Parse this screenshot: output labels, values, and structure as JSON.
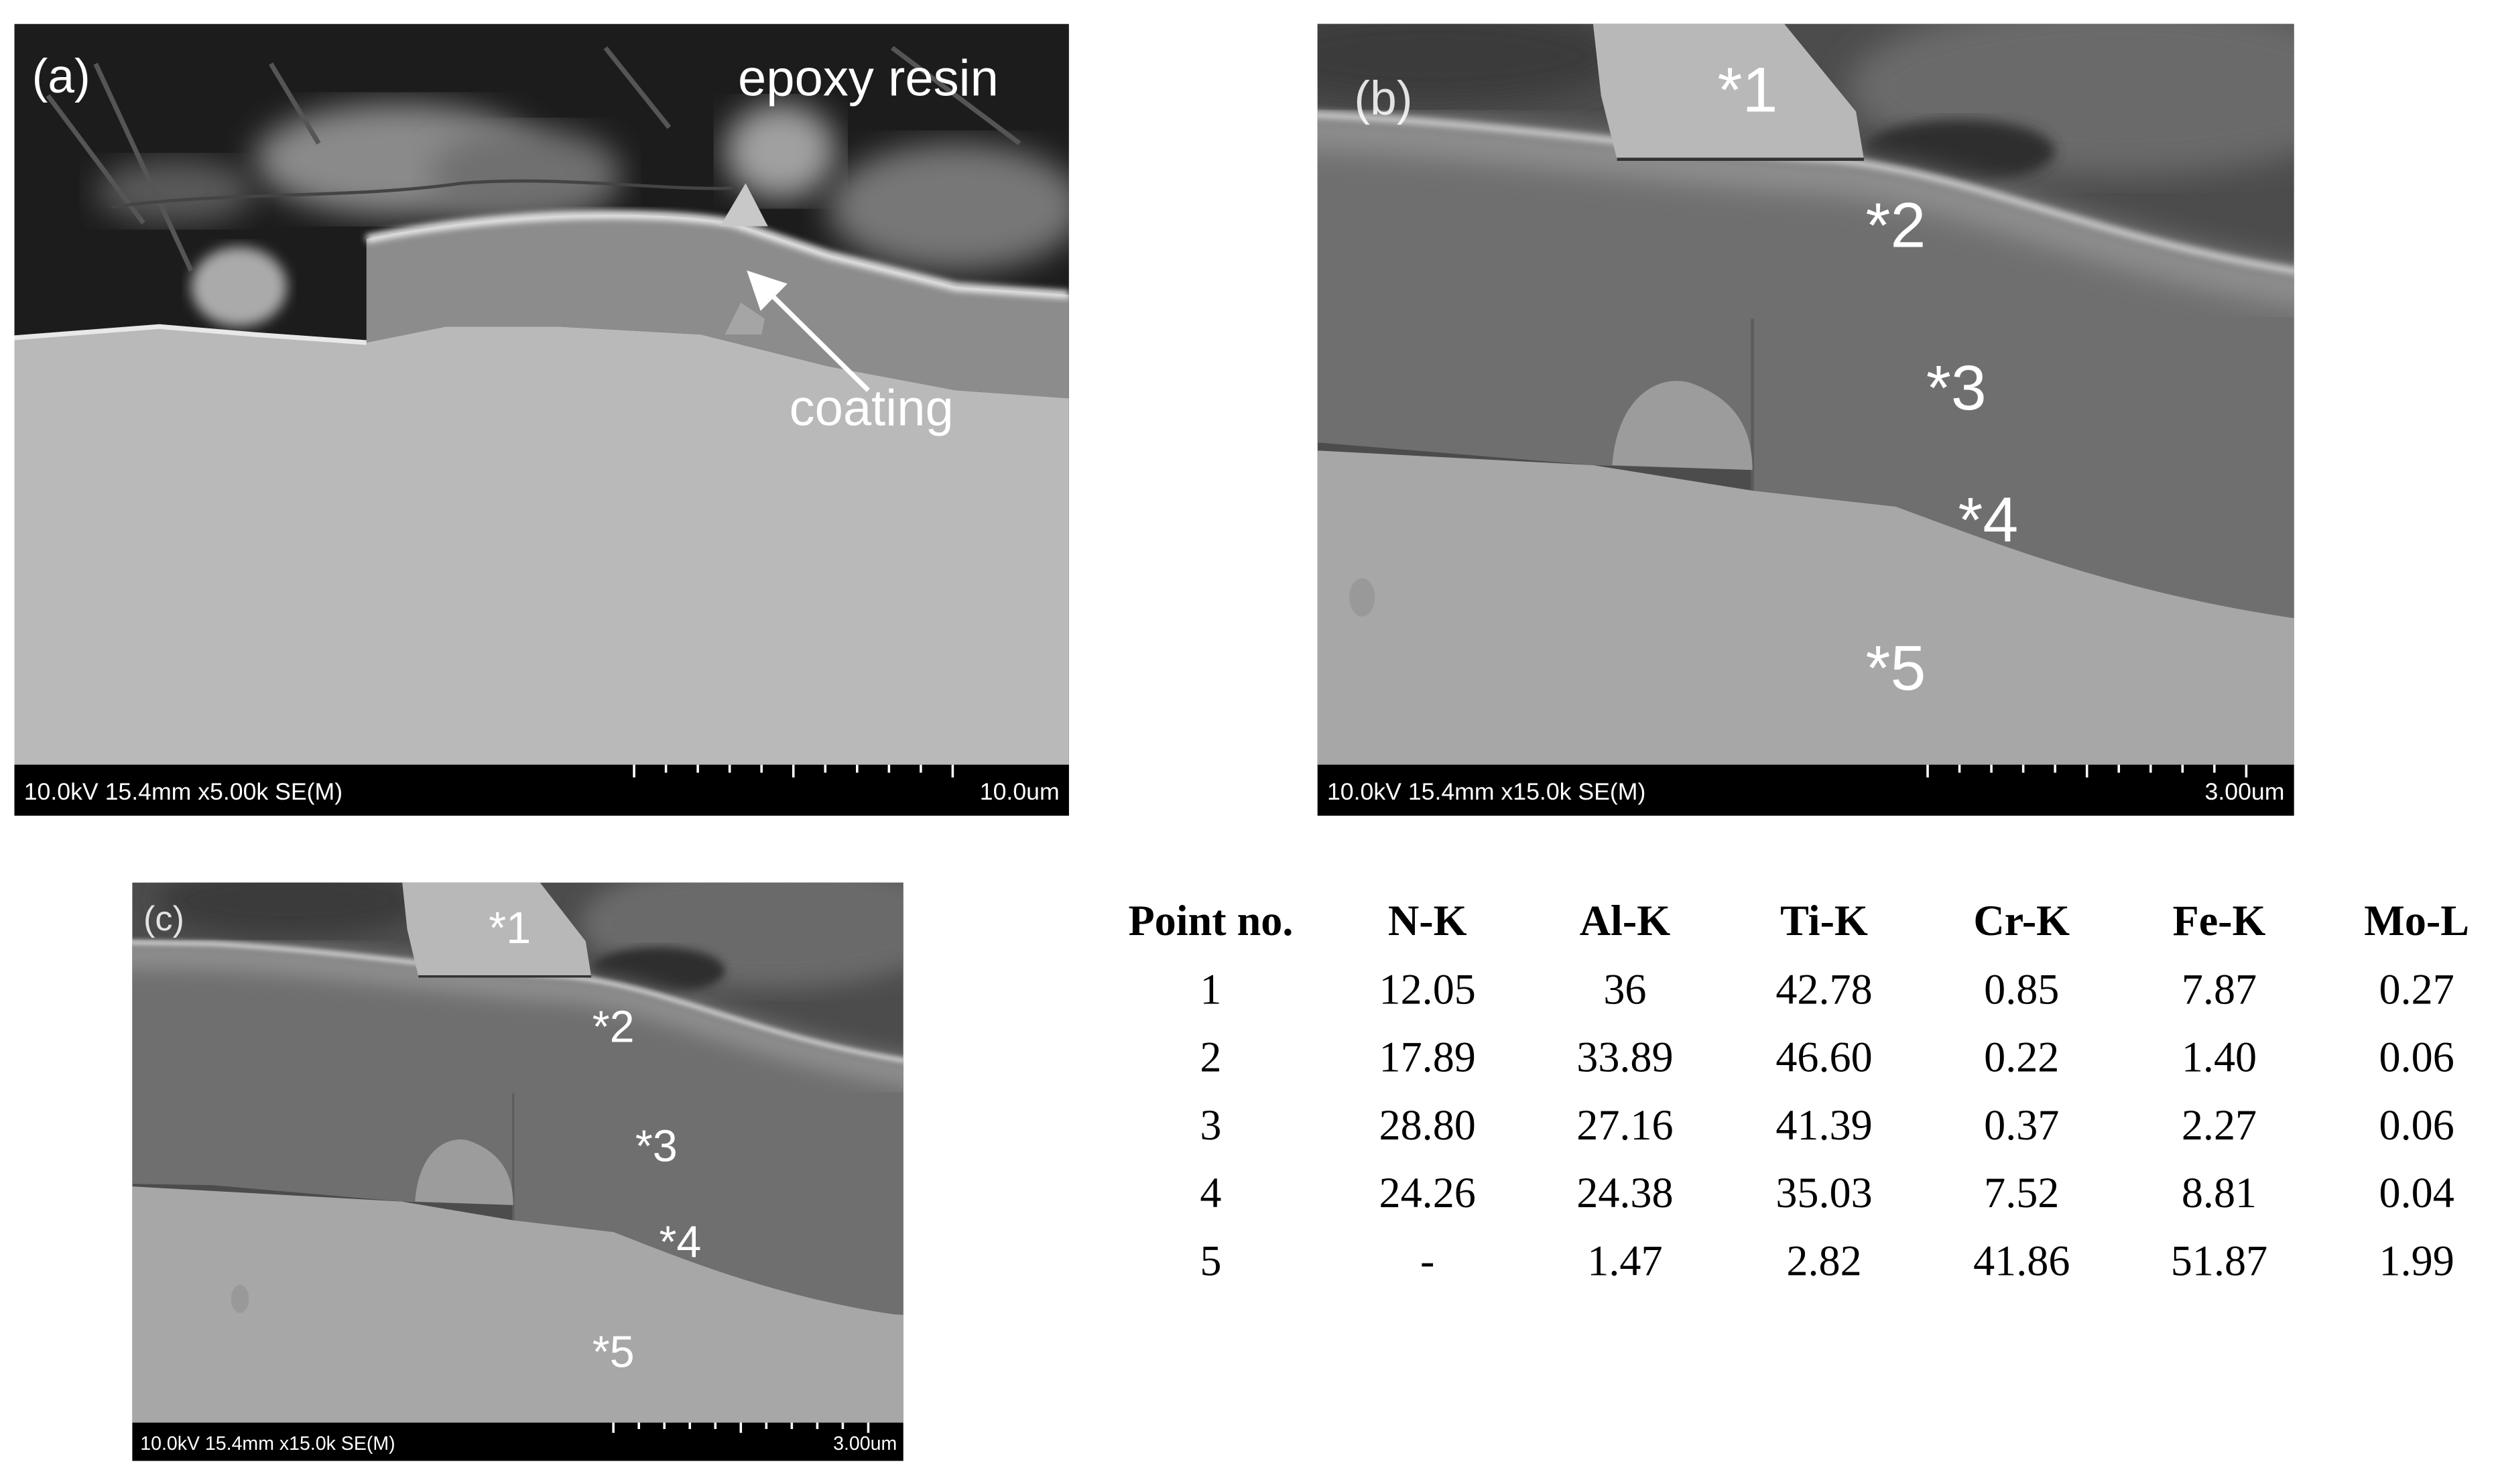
{
  "panels": [
    {
      "label": "(a)",
      "annotations": [
        "epoxy resin",
        "coating"
      ],
      "info": "10.0kV 15.4mm x5.00k SE(M)",
      "scale": "10.0um"
    },
    {
      "label": "(b)",
      "annotations": [
        "*1",
        "*2",
        "*3",
        "*4",
        "*5"
      ],
      "info": "10.0kV 15.4mm x15.0k SE(M)",
      "scale": "3.00um"
    },
    {
      "label": "(c)",
      "annotations": [
        "*1",
        "*2",
        "*3",
        "*4",
        "*5"
      ],
      "info": "10.0kV 15.4mm x15.0k SE(M)",
      "scale": "3.00um"
    }
  ],
  "table": {
    "header": [
      "Point no.",
      "N-K",
      "Al-K",
      "Ti-K",
      "Cr-K",
      "Fe-K",
      "Mo-L"
    ],
    "rows": [
      [
        "1",
        "12.05",
        "36",
        "42.78",
        "0.85",
        "7.87",
        "0.27"
      ],
      [
        "2",
        "17.89",
        "33.89",
        "46.60",
        "0.22",
        "1.40",
        "0.06"
      ],
      [
        "3",
        "28.80",
        "27.16",
        "41.39",
        "0.37",
        "2.27",
        "0.06"
      ],
      [
        "4",
        "24.26",
        "24.38",
        "35.03",
        "7.52",
        "8.81",
        "0.04"
      ],
      [
        "5",
        "-",
        "1.47",
        "2.82",
        "41.86",
        "51.87",
        "1.99"
      ]
    ]
  }
}
